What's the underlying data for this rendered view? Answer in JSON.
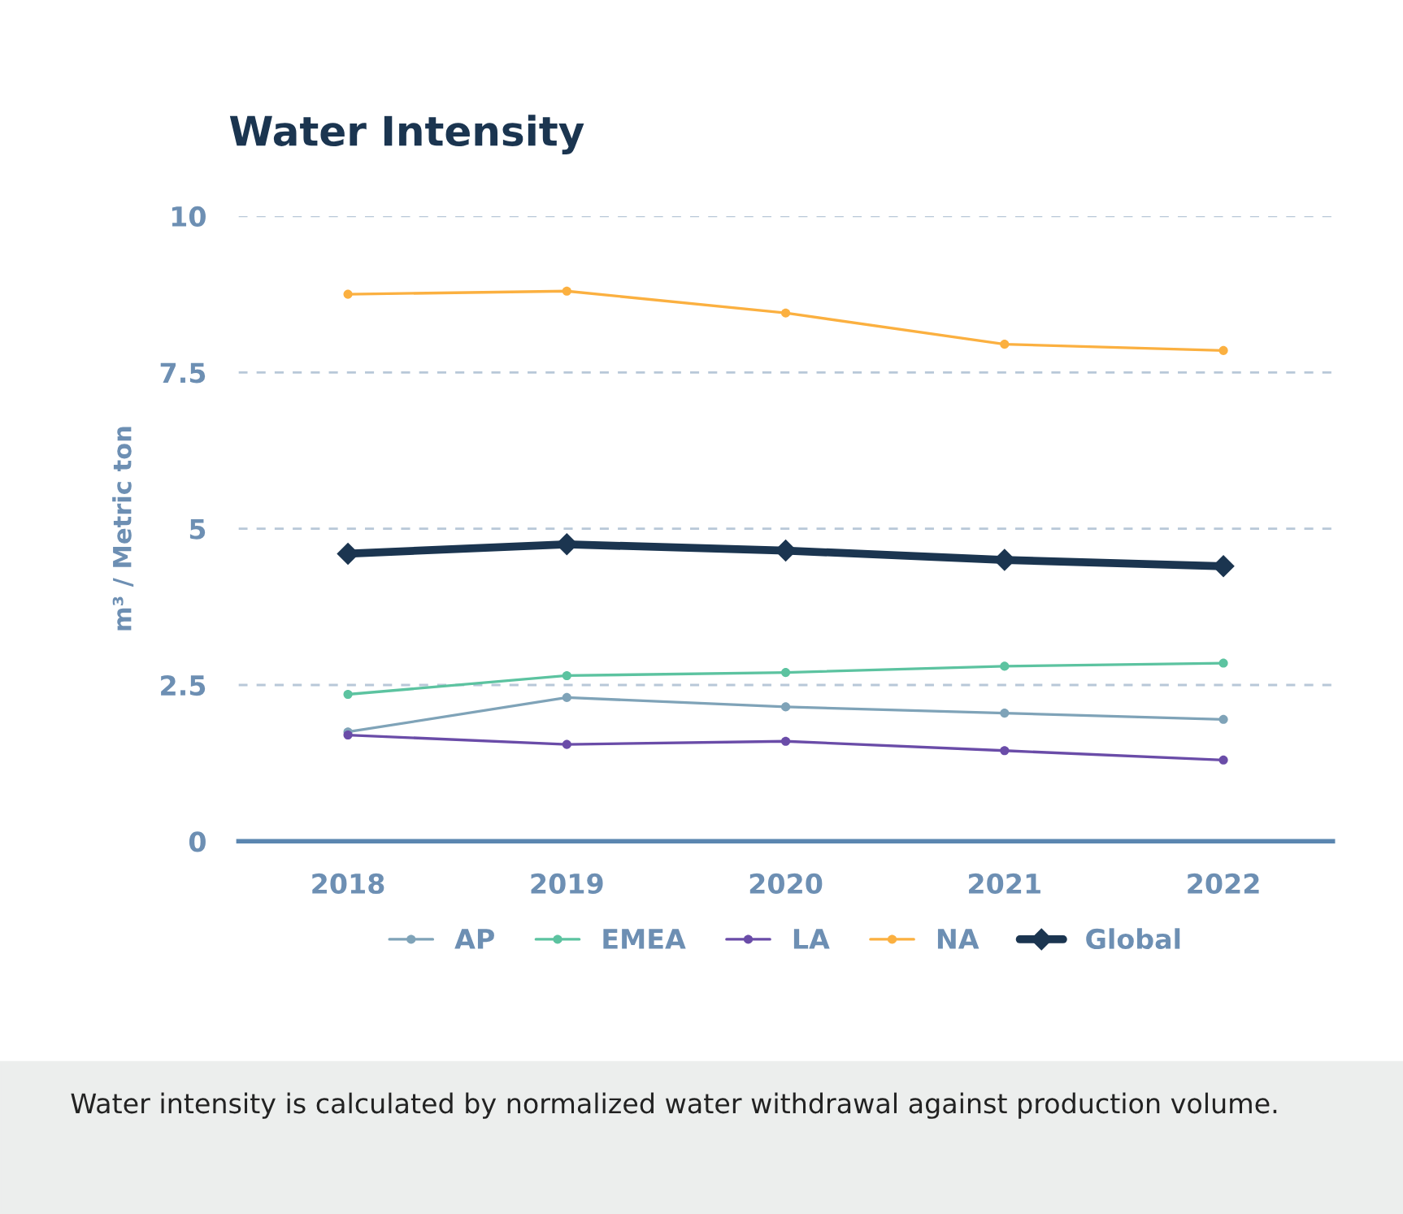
{
  "chart_data": {
    "type": "line",
    "title": "Water Intensity",
    "ylabel": "m³ / Metric ton",
    "categories": [
      "2018",
      "2019",
      "2020",
      "2021",
      "2022"
    ],
    "series": [
      {
        "name": "AP",
        "color": "#7fa3b8",
        "marker": "circle",
        "values": [
          1.75,
          2.3,
          2.15,
          2.05,
          1.95
        ]
      },
      {
        "name": "EMEA",
        "color": "#5cc3a0",
        "marker": "circle",
        "values": [
          2.35,
          2.65,
          2.7,
          2.8,
          2.85
        ]
      },
      {
        "name": "LA",
        "color": "#6a4ca8",
        "marker": "circle",
        "values": [
          1.7,
          1.55,
          1.6,
          1.45,
          1.3
        ]
      },
      {
        "name": "NA",
        "color": "#fbb040",
        "marker": "circle",
        "values": [
          8.75,
          8.8,
          8.45,
          7.95,
          7.85
        ]
      },
      {
        "name": "Global",
        "color": "#1b3550",
        "marker": "diamond",
        "values": [
          4.6,
          4.75,
          4.65,
          4.5,
          4.4
        ]
      }
    ],
    "ylim": [
      0,
      10
    ],
    "yticks": [
      0,
      2.5,
      5,
      7.5,
      10
    ],
    "grid": "y",
    "legend": "bottom",
    "line_style": "solid",
    "annotations": [
      "Water intensity is calculated by normalized water withdrawal against production volume."
    ]
  }
}
